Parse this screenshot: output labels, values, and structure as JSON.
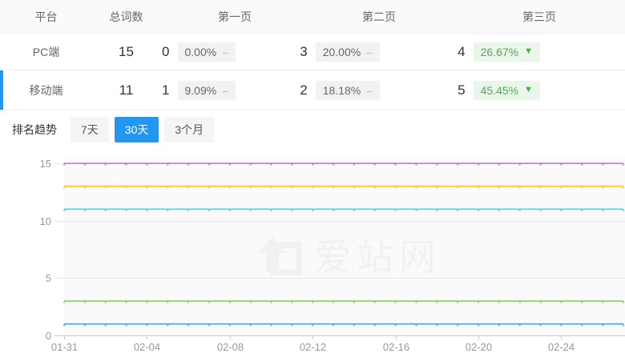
{
  "table": {
    "headers": [
      "平台",
      "总词数",
      "第一页",
      "第二页",
      "第三页"
    ],
    "rows": [
      {
        "platform": "PC端",
        "total": "15",
        "page1": {
          "count": "0",
          "pct": "0.00%"
        },
        "page2": {
          "count": "3",
          "pct": "20.00%"
        },
        "page3": {
          "count": "4",
          "pct": "26.67%"
        }
      },
      {
        "platform": "移动端",
        "total": "11",
        "page1": {
          "count": "1",
          "pct": "9.09%"
        },
        "page2": {
          "count": "2",
          "pct": "18.18%"
        },
        "page3": {
          "count": "5",
          "pct": "45.45%"
        }
      }
    ]
  },
  "icons": {
    "flat_dash": "–",
    "down_arrow": "▼"
  },
  "trend": {
    "label": "排名趋势",
    "tabs": [
      {
        "label": "7天",
        "active": false
      },
      {
        "label": "30天",
        "active": true
      },
      {
        "label": "3个月",
        "active": false
      }
    ]
  },
  "watermark": {
    "text": "爱站网"
  },
  "colors": {
    "accent_blue": "#2196f3",
    "badge_green_bg": "#eaf6ea",
    "badge_green_text": "#57a757",
    "badge_gray_bg": "#f2f2f2"
  },
  "chart_data": {
    "type": "line",
    "title": "",
    "xlabel": "",
    "ylabel": "",
    "x_tick_labels": [
      "01-31",
      "02-04",
      "02-08",
      "02-12",
      "02-16",
      "02-20",
      "02-24"
    ],
    "x_tick_interval": 4,
    "x_days": 28,
    "ylim": [
      0,
      15
    ],
    "y_ticks": [
      0,
      5,
      10,
      15
    ],
    "grid": true,
    "legend": "none",
    "series": [
      {
        "value": 15,
        "color": "#b777d9"
      },
      {
        "value": 13,
        "color": "#fcc32d"
      },
      {
        "value": 11,
        "color": "#45d6e0"
      },
      {
        "value": 3,
        "color": "#7fce4f"
      },
      {
        "value": 1,
        "color": "#49a3ee"
      }
    ]
  }
}
